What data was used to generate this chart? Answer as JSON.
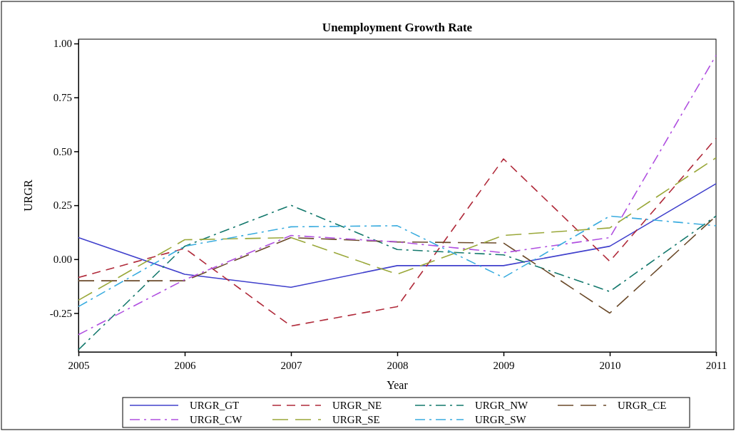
{
  "chart_data": {
    "type": "line",
    "title": "Unemployment Growth Rate",
    "xlabel": "Year",
    "ylabel": "URGR",
    "x": [
      2005,
      2006,
      2007,
      2008,
      2009,
      2010,
      2011
    ],
    "xlim": [
      2005,
      2011
    ],
    "xticks": [
      2005,
      2006,
      2007,
      2008,
      2009,
      2010,
      2011
    ],
    "ylim": [
      -0.43,
      1.02
    ],
    "yticks": [
      {
        "value": -0.25,
        "label": "-0.25"
      },
      {
        "value": 0,
        "label": "0.00"
      },
      {
        "value": 0.25,
        "label": "0.25"
      },
      {
        "value": 0.5,
        "label": "0.50"
      },
      {
        "value": 0.75,
        "label": "0.75"
      },
      {
        "value": 1,
        "label": "1.00"
      }
    ],
    "grid": false,
    "legend": "bottom",
    "marker": "none",
    "series": [
      {
        "name": "URGR_GT",
        "color": "#4040cc",
        "line_style": "solid",
        "values": [
          0.1,
          -0.07,
          -0.13,
          -0.03,
          -0.03,
          0.06,
          0.35
        ]
      },
      {
        "name": "URGR_NE",
        "color": "#b02a3a",
        "line_style": "dashed",
        "values": [
          -0.085,
          0.05,
          -0.31,
          -0.22,
          0.465,
          -0.01,
          0.56
        ]
      },
      {
        "name": "URGR_NW",
        "color": "#13786c",
        "line_style": "dashdot",
        "values": [
          -0.42,
          0.06,
          0.25,
          0.045,
          0.02,
          -0.15,
          0.2
        ]
      },
      {
        "name": "URGR_CE",
        "color": "#6b4a2a",
        "line_style": "longdash",
        "values": [
          -0.1,
          -0.1,
          0.1,
          0.08,
          0.075,
          -0.25,
          0.2
        ]
      },
      {
        "name": "URGR_CW",
        "color": "#b050e0",
        "line_style": "dashdot",
        "values": [
          -0.35,
          -0.095,
          0.11,
          0.08,
          0.03,
          0.1,
          0.945
        ]
      },
      {
        "name": "URGR_SE",
        "color": "#9aa83a",
        "line_style": "longdash",
        "values": [
          -0.19,
          0.09,
          0.1,
          -0.07,
          0.11,
          0.145,
          0.47
        ]
      },
      {
        "name": "URGR_SW",
        "color": "#3aacdf",
        "line_style": "dashdot",
        "values": [
          -0.22,
          0.06,
          0.15,
          0.155,
          -0.085,
          0.2,
          0.155
        ]
      }
    ]
  }
}
